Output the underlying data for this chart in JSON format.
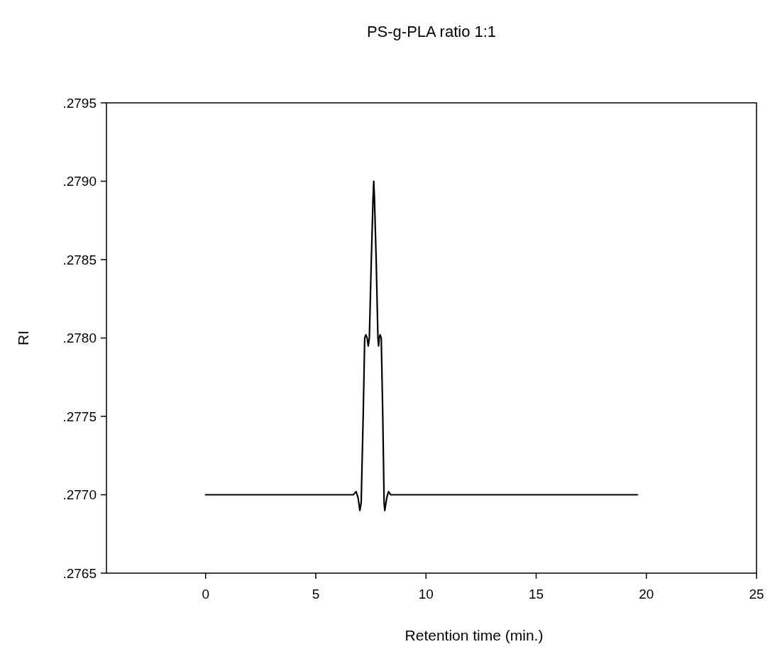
{
  "chart_data": {
    "type": "line",
    "title": "PS-g-PLA ratio 1:1",
    "xlabel": "Retention time (min.)",
    "ylabel": "RI",
    "xlim": [
      -4.5,
      25
    ],
    "ylim": [
      0.2765,
      0.2795
    ],
    "xticks": [
      0,
      5,
      10,
      15,
      20,
      25
    ],
    "yticks": [
      {
        "value": 0.2765,
        "label": ".2765"
      },
      {
        "value": 0.277,
        "label": ".2770"
      },
      {
        "value": 0.2775,
        "label": ".2775"
      },
      {
        "value": 0.278,
        "label": ".2780"
      },
      {
        "value": 0.2785,
        "label": ".2785"
      },
      {
        "value": 0.279,
        "label": ".2790"
      },
      {
        "value": 0.2795,
        "label": ".2795"
      }
    ],
    "grid": false,
    "marker": "none",
    "line_style": "solid",
    "series": [
      {
        "color": "#000000",
        "x": [
          0,
          6.7,
          6.83,
          6.92,
          7.0,
          7.06,
          7.15,
          7.22,
          7.27,
          7.33,
          7.38,
          7.43,
          7.52,
          7.6,
          7.63,
          7.66,
          7.74,
          7.82,
          7.85,
          7.88,
          7.92,
          7.97,
          8.04,
          8.1,
          8.13,
          8.22,
          8.3,
          8.4,
          19.6
        ],
        "values": [
          0.277,
          0.277,
          0.27702,
          0.27698,
          0.2769,
          0.27695,
          0.2775,
          0.278,
          0.27802,
          0.278,
          0.27795,
          0.278,
          0.2785,
          0.2789,
          0.279,
          0.2789,
          0.2785,
          0.278,
          0.27795,
          0.278,
          0.27802,
          0.278,
          0.2775,
          0.27695,
          0.2769,
          0.27698,
          0.27702,
          0.277,
          0.277
        ]
      }
    ]
  }
}
